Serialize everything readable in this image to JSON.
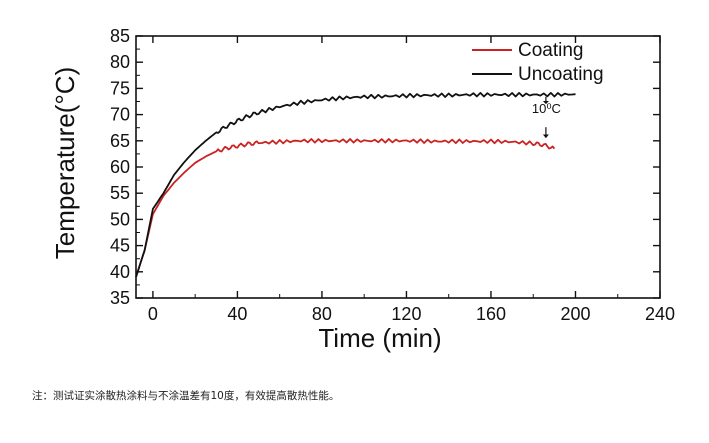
{
  "chart_data": {
    "type": "line",
    "xlabel": "Time (min)",
    "ylabel": "Temperature(°C)",
    "xlim": [
      -8,
      240
    ],
    "ylim": [
      35,
      85
    ],
    "xticks": [
      0,
      40,
      80,
      120,
      160,
      200,
      240
    ],
    "yticks": [
      35,
      40,
      45,
      50,
      55,
      60,
      65,
      70,
      75,
      80,
      85
    ],
    "legend_position": "top-right",
    "annotation": "10⁰C",
    "series": [
      {
        "name": "Coating",
        "color": "#cc2222",
        "x": [
          -8,
          -4,
          0,
          5,
          10,
          15,
          20,
          25,
          30,
          35,
          40,
          45,
          50,
          60,
          70,
          80,
          90,
          100,
          110,
          120,
          130,
          140,
          150,
          160,
          170,
          180,
          185,
          190
        ],
        "y": [
          39.0,
          44.0,
          51.0,
          54.5,
          57.0,
          59.0,
          60.8,
          62.0,
          63.0,
          63.6,
          64.0,
          64.4,
          64.6,
          64.8,
          65.0,
          65.0,
          65.0,
          65.0,
          65.0,
          65.0,
          64.9,
          64.9,
          64.9,
          64.9,
          64.8,
          64.5,
          64.2,
          63.5
        ]
      },
      {
        "name": "Uncoating",
        "color": "#111111",
        "x": [
          -8,
          -4,
          0,
          5,
          10,
          15,
          20,
          25,
          30,
          35,
          40,
          45,
          50,
          60,
          70,
          80,
          90,
          100,
          110,
          120,
          130,
          140,
          150,
          160,
          170,
          180,
          190,
          200
        ],
        "y": [
          39.0,
          44.0,
          52.0,
          55.0,
          58.5,
          61.0,
          63.2,
          65.0,
          66.6,
          67.8,
          68.8,
          69.7,
          70.4,
          71.5,
          72.3,
          72.8,
          73.2,
          73.4,
          73.5,
          73.6,
          73.7,
          73.7,
          73.8,
          73.8,
          73.8,
          73.8,
          73.8,
          73.9
        ]
      }
    ]
  },
  "note": "注：测试证实涂散热涂料与不涂温差有10度，有效提高散热性能。"
}
